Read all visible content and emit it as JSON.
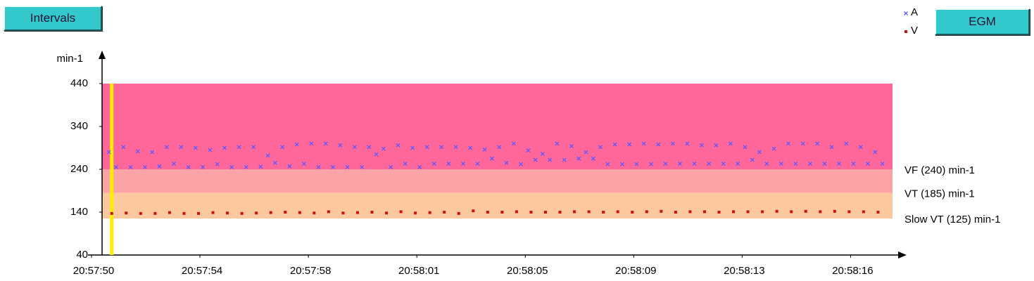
{
  "buttons": {
    "intervals": "Intervals",
    "egm": "EGM"
  },
  "chart_data": {
    "type": "scatter",
    "y_label": "min-1",
    "xlim": [
      50,
      77.7
    ],
    "xticks": [
      {
        "value": 50,
        "label": "20:57:50"
      },
      {
        "value": 53.75,
        "label": "20:57:54"
      },
      {
        "value": 57.5,
        "label": "20:57:58"
      },
      {
        "value": 61.25,
        "label": "20:58:01"
      },
      {
        "value": 65,
        "label": "20:58:05"
      },
      {
        "value": 68.75,
        "label": "20:58:09"
      },
      {
        "value": 72.5,
        "label": "20:58:13"
      },
      {
        "value": 76.25,
        "label": "20:58:16"
      }
    ],
    "ylim": [
      40,
      440
    ],
    "yticks": [
      40,
      140,
      240,
      340,
      440
    ],
    "cursor_x": 50.7,
    "cursor_color": "#ffee00",
    "zones": [
      {
        "label": "VF (240) min-1",
        "lower": 240,
        "upper": 440,
        "color": "#ff6699"
      },
      {
        "label": "VT (185) min-1",
        "lower": 185,
        "upper": 240,
        "color": "#fca3a8"
      },
      {
        "label": "Slow VT (125) min-1",
        "lower": 125,
        "upper": 185,
        "color": "#fcc8a0"
      }
    ],
    "series": [
      {
        "name": "A",
        "color": "#5a5aff",
        "marker": "cross",
        "x": [
          50.6,
          50.85,
          51.1,
          51.35,
          51.6,
          51.85,
          52.1,
          52.35,
          52.6,
          52.85,
          53.1,
          53.35,
          53.6,
          53.85,
          54.1,
          54.35,
          54.6,
          54.85,
          55.1,
          55.35,
          55.6,
          55.85,
          56.1,
          56.35,
          56.6,
          56.85,
          57.1,
          57.35,
          57.6,
          57.85,
          58.1,
          58.35,
          58.6,
          58.85,
          59.1,
          59.35,
          59.6,
          59.85,
          60.1,
          60.35,
          60.6,
          60.85,
          61.1,
          61.35,
          61.6,
          61.85,
          62.1,
          62.35,
          62.6,
          62.85,
          63.1,
          63.35,
          63.6,
          63.85,
          64.1,
          64.35,
          64.6,
          64.85,
          65.1,
          65.35,
          65.6,
          65.85,
          66.1,
          66.35,
          66.6,
          66.85,
          67.1,
          67.35,
          67.6,
          67.85,
          68.1,
          68.35,
          68.6,
          68.85,
          69.1,
          69.35,
          69.6,
          69.85,
          70.1,
          70.35,
          70.6,
          70.85,
          71.1,
          71.35,
          71.6,
          71.85,
          72.1,
          72.35,
          72.6,
          72.85,
          73.1,
          73.35,
          73.6,
          73.85,
          74.1,
          74.35,
          74.6,
          74.85,
          75.1,
          75.35,
          75.6,
          75.85,
          76.1,
          76.35,
          76.6,
          76.85,
          77.1,
          77.35
        ],
        "values": [
          280,
          245,
          292,
          245,
          282,
          245,
          280,
          247,
          292,
          253,
          292,
          245,
          290,
          245,
          285,
          252,
          290,
          245,
          292,
          245,
          292,
          246,
          272,
          255,
          292,
          247,
          298,
          253,
          300,
          245,
          300,
          245,
          296,
          245,
          292,
          245,
          292,
          275,
          288,
          245,
          296,
          253,
          290,
          245,
          292,
          253,
          292,
          253,
          292,
          253,
          290,
          253,
          286,
          265,
          292,
          255,
          300,
          252,
          284,
          262,
          276,
          262,
          300,
          262,
          294,
          265,
          280,
          265,
          292,
          252,
          298,
          252,
          298,
          252,
          300,
          252,
          298,
          253,
          300,
          253,
          300,
          253,
          296,
          253,
          296,
          253,
          300,
          253,
          292,
          262,
          280,
          253,
          288,
          253,
          300,
          253,
          300,
          253,
          300,
          253,
          292,
          253,
          300,
          253,
          292,
          253,
          280,
          253
        ]
      },
      {
        "name": "V",
        "color": "#cc1111",
        "marker": "square",
        "x": [
          50.7,
          51.2,
          51.7,
          52.2,
          52.7,
          53.2,
          53.7,
          54.2,
          54.7,
          55.2,
          55.7,
          56.2,
          56.7,
          57.2,
          57.7,
          58.2,
          58.7,
          59.2,
          59.7,
          60.2,
          60.7,
          61.2,
          61.7,
          62.2,
          62.7,
          63.2,
          63.7,
          64.2,
          64.7,
          65.2,
          65.7,
          66.2,
          66.7,
          67.2,
          67.7,
          68.2,
          68.7,
          69.2,
          69.7,
          70.2,
          70.7,
          71.2,
          71.7,
          72.2,
          72.7,
          73.2,
          73.7,
          74.2,
          74.7,
          75.2,
          75.7,
          76.2,
          76.7,
          77.2
        ],
        "values": [
          137,
          138,
          137,
          137,
          139,
          137,
          137,
          139,
          138,
          137,
          138,
          139,
          140,
          139,
          138,
          141,
          138,
          139,
          140,
          138,
          141,
          138,
          139,
          140,
          137,
          143,
          140,
          140,
          141,
          140,
          140,
          140,
          141,
          141,
          140,
          141,
          140,
          141,
          142,
          140,
          141,
          141,
          140,
          141,
          141,
          141,
          142,
          141,
          142,
          141,
          142,
          141,
          141,
          140
        ]
      }
    ]
  }
}
